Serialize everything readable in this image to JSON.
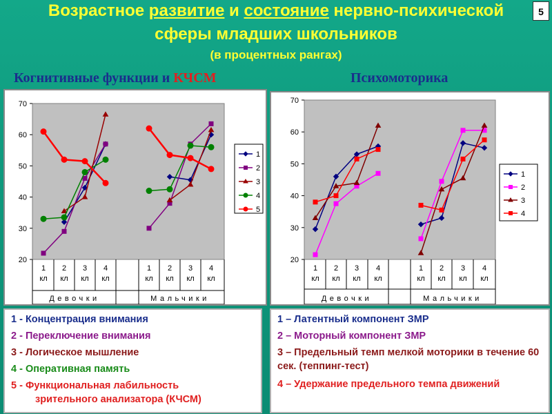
{
  "page": {
    "title_parts": [
      "Возрастное ",
      "развитие",
      " и ",
      "состояние",
      " нервно-психической"
    ],
    "title_line2": "сферы младших школьников",
    "title_line3": "(в процентных рангах)",
    "slide_number": "5",
    "heading_left_prefix": "Когнитивные функции и ",
    "heading_left_accent": "КЧСМ",
    "heading_right": "Психомоторика"
  },
  "legend_left": [
    {
      "text": "1 - Концентрация внимания",
      "color": "#1a2e8c"
    },
    {
      "text": "2 - Переключение внимания",
      "color": "#8b1a8b"
    },
    {
      "text": "3 - Логическое мышление",
      "color": "#8b1a1a"
    },
    {
      "text": "4 - Оперативная память",
      "color": "#1a8c1a"
    },
    {
      "text": "5 - Функциональная лабильность",
      "color": "#e02020"
    },
    {
      "text": "зрительного анализатора (КЧСМ)",
      "color": "#e02020",
      "indent": true
    }
  ],
  "legend_right": [
    {
      "text": "1 – Латентный компонент ЗМР",
      "color": "#1a2e8c"
    },
    {
      "text": "2 – Моторный  компонент ЗМР",
      "color": "#8b1a8b"
    },
    {
      "text": "3 – Предельный темп мелкой моторики в течение 60 сек. (теппинг-тест)",
      "color": "#8b1a1a"
    },
    {
      "text": "4 – Удержание предельного темпа движений",
      "color": "#e02020"
    }
  ],
  "chart_data": [
    {
      "type": "line",
      "ylim": [
        20,
        70
      ],
      "yticks": [
        20,
        30,
        40,
        50,
        60,
        70
      ],
      "grid": false,
      "legend_position": "right",
      "categories": [
        "1 кл",
        "2 кл",
        "3 кл",
        "4 кл",
        "1 кл",
        "2 кл",
        "3 кл",
        "4 кл"
      ],
      "groups": [
        "Девочки",
        "Мальчики"
      ],
      "series": [
        {
          "name": "1",
          "color": "#000080",
          "marker": "diamond",
          "values": [
            null,
            32,
            43,
            57,
            null,
            46.5,
            45.5,
            60
          ]
        },
        {
          "name": "2",
          "color": "#800080",
          "marker": "square",
          "values": [
            22,
            29,
            46,
            57,
            30,
            38,
            57,
            63.5
          ]
        },
        {
          "name": "3",
          "color": "#990000",
          "marker": "triangle",
          "values": [
            null,
            35.5,
            40,
            66.5,
            null,
            39,
            44,
            61.5
          ]
        },
        {
          "name": "4",
          "color": "#008000",
          "marker": "circle",
          "values": [
            33,
            33.5,
            48,
            52,
            42,
            42.5,
            56.5,
            56
          ]
        },
        {
          "name": "5",
          "color": "#ff0000",
          "marker": "circle",
          "values": [
            61,
            52,
            51.5,
            44.5,
            62,
            53.5,
            52.5,
            49
          ]
        }
      ]
    },
    {
      "type": "line",
      "ylim": [
        20,
        70
      ],
      "yticks": [
        20,
        30,
        40,
        50,
        60,
        70
      ],
      "grid": false,
      "legend_position": "right",
      "categories": [
        "1 кл",
        "2 кл",
        "3 кл",
        "4 кл",
        "1 кл",
        "2 кл",
        "3 кл",
        "4 кл"
      ],
      "groups": [
        "Девочки",
        "Мальчики"
      ],
      "series": [
        {
          "name": "1",
          "color": "#000080",
          "marker": "diamond",
          "values": [
            29.5,
            46,
            53,
            55.5,
            31,
            33,
            56.5,
            55
          ]
        },
        {
          "name": "2",
          "color": "#ff00ff",
          "marker": "square",
          "values": [
            21.5,
            37.5,
            43,
            47,
            26.5,
            44.5,
            60.5,
            60.5
          ]
        },
        {
          "name": "3",
          "color": "#800000",
          "marker": "triangle",
          "values": [
            33,
            43,
            44,
            62,
            22,
            42,
            45.5,
            62
          ]
        },
        {
          "name": "4",
          "color": "#ff0000",
          "marker": "square",
          "values": [
            38,
            40,
            51.5,
            54.5,
            37,
            35.5,
            51.5,
            57.5
          ]
        }
      ]
    }
  ]
}
